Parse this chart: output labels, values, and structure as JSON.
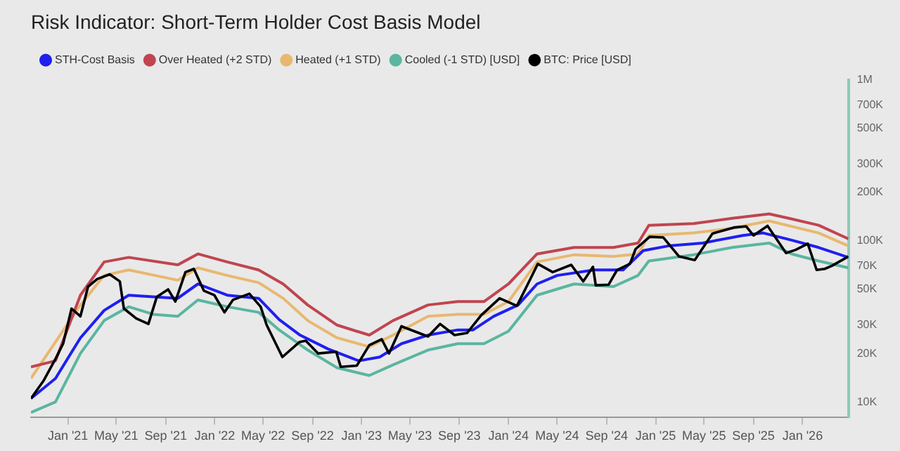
{
  "chart_data": {
    "type": "line",
    "title": "Risk Indicator: Short-Term Holder Cost Basis Model",
    "legend": "top left",
    "log": "y",
    "grid": false,
    "xlim": [
      "2020-10-01",
      "2026-04-25"
    ],
    "xticks": [
      {
        "value": "2021-01-01",
        "label": "Jan '21"
      },
      {
        "value": "2021-05-01",
        "label": "May '21"
      },
      {
        "value": "2021-09-01",
        "label": "Sep '21"
      },
      {
        "value": "2022-01-01",
        "label": "Jan '22"
      },
      {
        "value": "2022-05-01",
        "label": "May '22"
      },
      {
        "value": "2022-09-01",
        "label": "Sep '22"
      },
      {
        "value": "2023-01-01",
        "label": "Jan '23"
      },
      {
        "value": "2023-05-01",
        "label": "May '23"
      },
      {
        "value": "2023-09-01",
        "label": "Sep '23"
      },
      {
        "value": "2024-01-01",
        "label": "Jan '24"
      },
      {
        "value": "2024-05-01",
        "label": "May '24"
      },
      {
        "value": "2024-09-01",
        "label": "Sep '24"
      },
      {
        "value": "2025-01-01",
        "label": "Jan '25"
      },
      {
        "value": "2025-05-01",
        "label": "May '25"
      },
      {
        "value": "2025-09-01",
        "label": "Sep '25"
      },
      {
        "value": "2026-01-01",
        "label": "Jan '26"
      }
    ],
    "ylim": [
      8000,
      1000000
    ],
    "yticks": [
      {
        "value": 10000,
        "label": "10K"
      },
      {
        "value": 20000,
        "label": "20K"
      },
      {
        "value": 30000,
        "label": "30K"
      },
      {
        "value": 50000,
        "label": "50K"
      },
      {
        "value": 70000,
        "label": "70K"
      },
      {
        "value": 100000,
        "label": "100K"
      },
      {
        "value": 200000,
        "label": "200K"
      },
      {
        "value": 300000,
        "label": "300K"
      },
      {
        "value": 500000,
        "label": "500K"
      },
      {
        "value": 700000,
        "label": "700K"
      },
      {
        "value": 1000000,
        "label": "1M"
      }
    ],
    "series": [
      {
        "name": "STH-Cost Basis",
        "color": "#1f1ff0",
        "x": [
          "2020-10-01",
          "2020-12-01",
          "2021-02-01",
          "2021-04-01",
          "2021-06-01",
          "2021-08-01",
          "2021-10-01",
          "2021-11-20",
          "2022-02-01",
          "2022-04-20",
          "2022-06-10",
          "2022-08-01",
          "2022-10-10",
          "2022-12-25",
          "2023-02-15",
          "2023-04-10",
          "2023-06-15",
          "2023-08-28",
          "2023-10-05",
          "2023-11-25",
          "2024-01-25",
          "2024-03-12",
          "2024-05-01",
          "2024-08-01",
          "2024-10-12",
          "2024-12-01",
          "2025-02-01",
          "2025-04-28",
          "2025-08-05",
          "2025-09-25",
          "2025-12-05",
          "2026-02-10",
          "2026-04-25"
        ],
        "values": [
          10500,
          14000,
          25000,
          37000,
          46000,
          45000,
          44000,
          54000,
          46000,
          44000,
          32500,
          26000,
          21300,
          18000,
          19000,
          23000,
          26000,
          28000,
          28000,
          34000,
          40000,
          54000,
          61000,
          66000,
          66000,
          87000,
          93000,
          97000,
          108000,
          112000,
          101000,
          91000,
          79000
        ]
      },
      {
        "name": "Over Heated (+2 STD)",
        "color": "#c0454f",
        "x": [
          "2020-10-01",
          "2020-12-01",
          "2021-02-01",
          "2021-04-01",
          "2021-06-01",
          "2021-10-01",
          "2021-11-20",
          "2022-02-01",
          "2022-04-20",
          "2022-06-20",
          "2022-08-20",
          "2022-11-01",
          "2023-01-20",
          "2023-03-20",
          "2023-06-15",
          "2023-08-28",
          "2023-11-01",
          "2024-01-01",
          "2024-03-12",
          "2024-06-12",
          "2024-09-18",
          "2024-11-18",
          "2024-12-15",
          "2025-04-05",
          "2025-07-10",
          "2025-10-10",
          "2025-11-28",
          "2026-02-10",
          "2026-04-25"
        ],
        "values": [
          16500,
          18000,
          46000,
          74000,
          79000,
          71000,
          83000,
          74000,
          66000,
          54000,
          40000,
          30000,
          26000,
          32000,
          40000,
          42000,
          42000,
          54000,
          83000,
          91000,
          91000,
          97000,
          125000,
          128000,
          138000,
          147000,
          138000,
          125000,
          103000
        ]
      },
      {
        "name": "Heated (+1 STD)",
        "color": "#e8b870",
        "x": [
          "2020-10-01",
          "2021-02-01",
          "2021-04-01",
          "2021-06-01",
          "2021-10-01",
          "2021-11-20",
          "2022-02-01",
          "2022-04-20",
          "2022-06-20",
          "2022-08-20",
          "2022-11-01",
          "2023-01-20",
          "2023-03-20",
          "2023-06-15",
          "2023-08-28",
          "2023-11-01",
          "2024-01-01",
          "2024-03-12",
          "2024-06-12",
          "2024-09-18",
          "2024-11-18",
          "2024-12-15",
          "2025-04-05",
          "2025-07-10",
          "2025-10-10",
          "2026-02-10",
          "2026-04-25"
        ],
        "values": [
          14000,
          40000,
          61000,
          66000,
          57000,
          68000,
          61000,
          55000,
          44000,
          32000,
          25000,
          22000,
          26000,
          34000,
          35000,
          35000,
          42000,
          74000,
          82000,
          80000,
          83000,
          108000,
          112000,
          120000,
          133000,
          112000,
          93000
        ]
      },
      {
        "name": "Cooled (-1 STD) [USD]",
        "color": "#5bb5a0",
        "x": [
          "2020-10-01",
          "2020-12-01",
          "2021-02-01",
          "2021-04-01",
          "2021-06-01",
          "2021-08-01",
          "2021-10-01",
          "2021-11-20",
          "2022-02-01",
          "2022-04-20",
          "2022-06-10",
          "2022-08-20",
          "2022-11-01",
          "2023-01-20",
          "2023-03-20",
          "2023-06-15",
          "2023-08-28",
          "2023-11-01",
          "2024-01-01",
          "2024-03-12",
          "2024-06-12",
          "2024-09-18",
          "2024-11-18",
          "2024-12-15",
          "2025-04-05",
          "2025-07-10",
          "2025-10-10",
          "2025-12-05",
          "2026-02-10",
          "2026-04-25"
        ],
        "values": [
          8600,
          10000,
          20000,
          32000,
          39000,
          35000,
          34000,
          43000,
          39000,
          36000,
          28000,
          21000,
          16300,
          14600,
          17000,
          21000,
          23000,
          23000,
          27500,
          46000,
          54000,
          52000,
          61000,
          75000,
          82000,
          91000,
          97000,
          83000,
          75000,
          68000
        ]
      },
      {
        "name": "BTC: Price [USD]",
        "color": "#000000",
        "x": [
          "2020-10-01",
          "2020-11-01",
          "2020-12-01",
          "2020-12-20",
          "2021-01-10",
          "2021-02-01",
          "2021-02-20",
          "2021-03-15",
          "2021-04-15",
          "2021-05-10",
          "2021-05-20",
          "2021-06-20",
          "2021-07-20",
          "2021-08-10",
          "2021-09-07",
          "2021-09-25",
          "2021-10-20",
          "2021-11-10",
          "2021-12-05",
          "2021-12-31",
          "2022-01-25",
          "2022-02-15",
          "2022-03-28",
          "2022-04-25",
          "2022-05-10",
          "2022-06-18",
          "2022-07-30",
          "2022-08-15",
          "2022-09-15",
          "2022-10-30",
          "2022-11-10",
          "2022-12-20",
          "2023-01-20",
          "2023-02-20",
          "2023-03-10",
          "2023-04-10",
          "2023-06-15",
          "2023-07-15",
          "2023-08-20",
          "2023-09-20",
          "2023-10-25",
          "2023-12-10",
          "2024-01-22",
          "2024-02-15",
          "2024-03-14",
          "2024-04-20",
          "2024-06-05",
          "2024-07-05",
          "2024-07-29",
          "2024-08-05",
          "2024-09-06",
          "2024-09-27",
          "2024-10-29",
          "2024-11-12",
          "2024-12-17",
          "2025-01-20",
          "2025-02-28",
          "2025-04-08",
          "2025-05-22",
          "2025-07-14",
          "2025-08-14",
          "2025-09-01",
          "2025-10-06",
          "2025-11-21",
          "2025-12-15",
          "2026-01-14",
          "2026-02-05",
          "2026-02-25",
          "2026-03-15",
          "2026-04-25"
        ],
        "values": [
          10500,
          13500,
          18500,
          23000,
          38000,
          34000,
          52000,
          58000,
          62000,
          56000,
          38000,
          33000,
          30500,
          45000,
          50000,
          42000,
          64000,
          67000,
          49000,
          46000,
          36000,
          43000,
          47000,
          39000,
          30000,
          19000,
          23500,
          24000,
          20000,
          20500,
          16500,
          16800,
          22500,
          24500,
          20000,
          29500,
          25500,
          30500,
          26000,
          26800,
          34500,
          44000,
          39500,
          52000,
          72000,
          64000,
          71000,
          56000,
          69000,
          53000,
          53500,
          66000,
          72000,
          89000,
          106000,
          105000,
          80000,
          76000,
          111000,
          121000,
          123000,
          108000,
          124000,
          84000,
          88000,
          96000,
          66000,
          67000,
          70000,
          80000
        ]
      }
    ]
  }
}
